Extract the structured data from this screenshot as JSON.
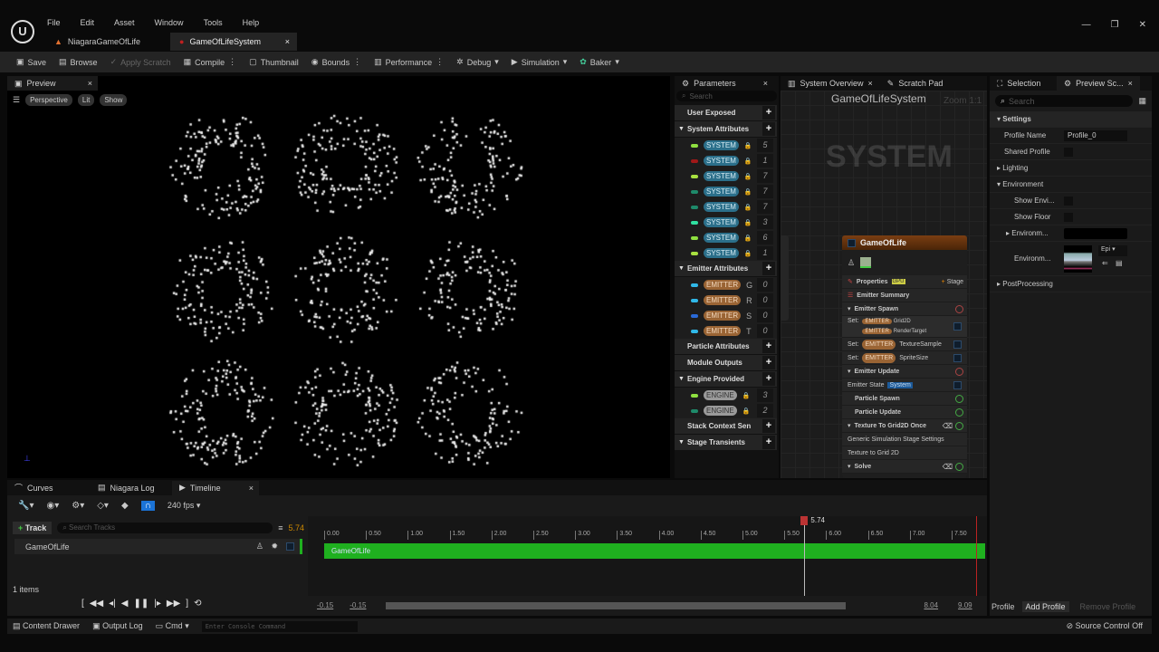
{
  "menu": [
    "File",
    "Edit",
    "Asset",
    "Window",
    "Tools",
    "Help"
  ],
  "doc_tabs": [
    {
      "label": "NiagaraGameOfLife"
    },
    {
      "label": "GameOfLifeSystem"
    }
  ],
  "toolbar": {
    "save": "Save",
    "browse": "Browse",
    "apply_scratch": "Apply Scratch",
    "compile": "Compile",
    "thumbnail": "Thumbnail",
    "bounds": "Bounds",
    "performance": "Performance",
    "debug": "Debug",
    "simulation": "Simulation",
    "baker": "Baker"
  },
  "preview": {
    "tab": "Preview",
    "perspective": "Perspective",
    "lit": "Lit",
    "show": "Show"
  },
  "parameters": {
    "tab": "Parameters",
    "search_placeholder": "Search",
    "sections": {
      "user_exposed": "User Exposed",
      "system_attributes": "System Attributes",
      "emitter_attributes": "Emitter Attributes",
      "particle_attributes": "Particle Attributes",
      "module_outputs": "Module Outputs",
      "engine_provided": "Engine Provided",
      "stack_context": "Stack Context Sen",
      "stage_transients": "Stage Transients"
    },
    "system_params": [
      {
        "tag": "SYSTEM",
        "color": "#8fe040",
        "value": "5"
      },
      {
        "tag": "SYSTEM",
        "color": "#a01818",
        "value": "1"
      },
      {
        "tag": "SYSTEM",
        "color": "#a8e040",
        "value": "7"
      },
      {
        "tag": "SYSTEM",
        "color": "#1e8a6a",
        "value": "7"
      },
      {
        "tag": "SYSTEM",
        "color": "#1e8a6a",
        "value": "7"
      },
      {
        "tag": "SYSTEM",
        "color": "#30e0a0",
        "value": "3"
      },
      {
        "tag": "SYSTEM",
        "color": "#8fe040",
        "value": "6"
      },
      {
        "tag": "SYSTEM",
        "color": "#a8e040",
        "value": "1"
      }
    ],
    "emitter_params": [
      {
        "tag": "EMITTER",
        "suffix": "G",
        "color": "#30b8e8",
        "value": "0"
      },
      {
        "tag": "EMITTER",
        "suffix": "R",
        "color": "#30b8e8",
        "value": "0"
      },
      {
        "tag": "EMITTER",
        "suffix": "S",
        "color": "#2a6ad8",
        "value": "0"
      },
      {
        "tag": "EMITTER",
        "suffix": "T",
        "color": "#30b8e8",
        "value": "0"
      }
    ],
    "engine_params": [
      {
        "tag": "ENGINE",
        "color": "#8fe040",
        "value": "3"
      },
      {
        "tag": "ENGINE",
        "color": "#1e8a6a",
        "value": "2"
      }
    ]
  },
  "overview": {
    "tab": "System Overview",
    "scratch_tab": "Scratch Pad",
    "title": "GameOfLifeSystem",
    "zoom": "Zoom 1:1",
    "watermark": "SYSTEM",
    "node": {
      "title": "GameOfLife",
      "properties": "Properties",
      "badge": "GPU",
      "stage": "Stage",
      "summary": "Emitter Summary",
      "emitter_spawn": "Emitter Spawn",
      "set": "Set:",
      "emitter_tag": "EMITTER",
      "grid2d": "Grid2D",
      "render_target": "RenderTarget",
      "texture_sample": "TextureSample",
      "sprite_size": "SpriteSize",
      "emitter_update": "Emitter Update",
      "emitter_state": "Emitter State",
      "system_tag": "System",
      "particle_spawn": "Particle Spawn",
      "particle_update": "Particle Update",
      "tex_to_grid": "Texture To Grid2D Once",
      "generic_settings": "Generic Simulation Stage Settings",
      "tex_to_grid2": "Texture to Grid 2D",
      "solve": "Solve"
    }
  },
  "right": {
    "selection_tab": "Selection",
    "preview_tab": "Preview Sc...",
    "search_placeholder": "Search",
    "settings": "Settings",
    "profile_name_label": "Profile Name",
    "profile_name": "Profile_0",
    "shared_profile": "Shared Profile",
    "lighting": "Lighting",
    "environment": "Environment",
    "show_env": "Show Envi...",
    "show_floor": "Show Floor",
    "environm1": "Environm...",
    "environm2": "Environm...",
    "epic": "Epi",
    "postprocessing": "PostProcessing",
    "profile": "Profile",
    "add_profile": "Add Profile",
    "remove_profile": "Remove Profile"
  },
  "bottom": {
    "tabs": [
      "Curves",
      "Niagara Log",
      "Timeline"
    ],
    "fps": "240 fps",
    "track_button": "Track",
    "search_tracks_placeholder": "Search Tracks",
    "current_time": "5.74",
    "track_name": "GameOfLife",
    "items": "1 items",
    "ruler": [
      "0.00",
      "0.50",
      "1.00",
      "1.50",
      "2.00",
      "2.50",
      "3.00",
      "3.50",
      "4.00",
      "4.50",
      "5.00",
      "5.50",
      "6.00",
      "6.50",
      "7.00",
      "7.50"
    ],
    "range_start": "-0.15",
    "view_start": "-0.15",
    "view_end": "8.04",
    "range_end": "9.09",
    "track_color": "#1fb01f"
  },
  "status": {
    "content_drawer": "Content Drawer",
    "output_log": "Output Log",
    "cmd": "Cmd",
    "console_placeholder": "Enter Console Command",
    "source_control": "Source Control Off"
  }
}
